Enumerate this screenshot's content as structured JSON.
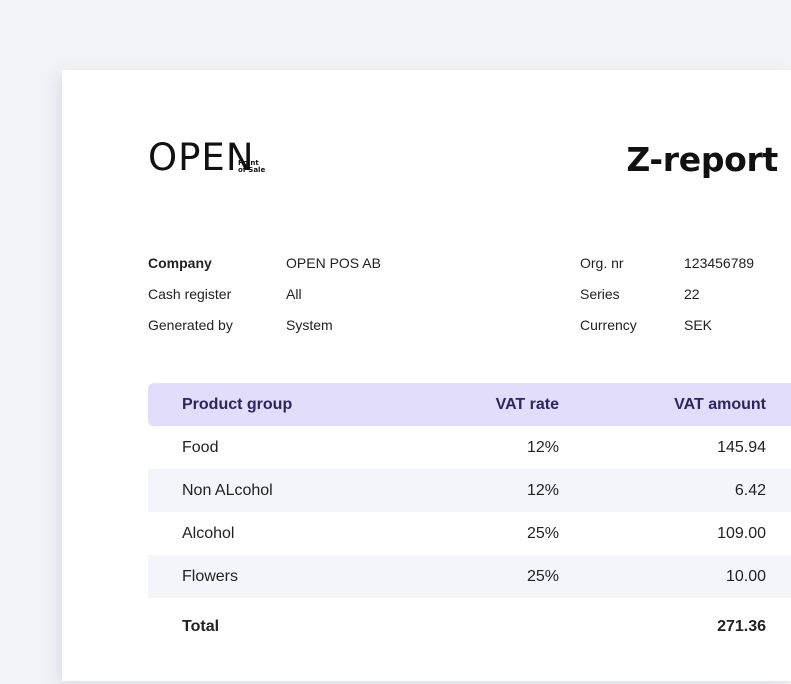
{
  "logo": {
    "word": "OPEN",
    "sub_line1": "Point",
    "sub_line2": "of Sale"
  },
  "report": {
    "title": "Z-report"
  },
  "meta_left": [
    {
      "label": "Company",
      "value": "OPEN POS AB"
    },
    {
      "label": "Cash register",
      "value": "All"
    },
    {
      "label": "Generated by",
      "value": "System"
    }
  ],
  "meta_right": [
    {
      "label": "Org. nr",
      "value": "123456789"
    },
    {
      "label": "Series",
      "value": "22"
    },
    {
      "label": "Currency",
      "value": "SEK"
    }
  ],
  "table": {
    "headers": [
      "Product group",
      "VAT rate",
      "VAT amount"
    ],
    "rows": [
      {
        "group": "Food",
        "rate": "12%",
        "amount": "145.94"
      },
      {
        "group": "Non ALcohol",
        "rate": "12%",
        "amount": "6.42"
      },
      {
        "group": "Alcohol",
        "rate": "25%",
        "amount": "109.00"
      },
      {
        "group": "Flowers",
        "rate": "25%",
        "amount": "10.00"
      }
    ],
    "total_label": "Total",
    "total_amount": "271.36"
  },
  "colors": {
    "header_bg": "#e2ddfa",
    "header_text": "#2d2460",
    "alt_row_bg": "#f4f4fb"
  }
}
